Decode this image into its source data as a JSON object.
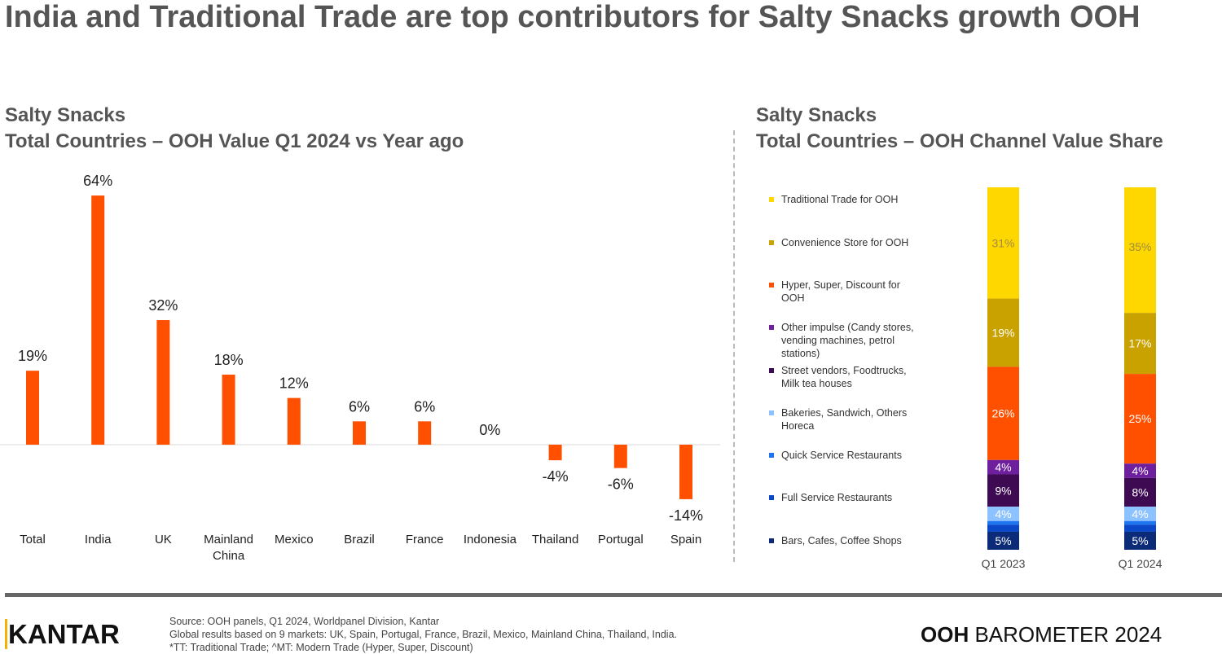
{
  "title": "India and Traditional Trade are top contributors for Salty Snacks growth OOH",
  "left": {
    "line1": "Salty Snacks",
    "line2": "Total Countries – OOH Value Q1 2024 vs Year ago"
  },
  "right": {
    "line1": "Salty Snacks",
    "line2": "Total Countries – OOH Channel Value Share"
  },
  "chart_data": [
    {
      "type": "bar",
      "title": "Total Countries – OOH Value Q1 2024 vs Year ago",
      "categories": [
        "Total",
        "India",
        "UK",
        "Mainland China",
        "Mexico",
        "Brazil",
        "France",
        "Indonesia",
        "Thailand",
        "Portugal",
        "Spain"
      ],
      "values": [
        19,
        64,
        32,
        18,
        12,
        6,
        6,
        0,
        -4,
        -6,
        -14
      ],
      "labels": [
        "19%",
        "64%",
        "32%",
        "18%",
        "12%",
        "6%",
        "6%",
        "0%",
        "-4%",
        "-6%",
        "-14%"
      ],
      "color": "#FF5000",
      "unit": "%"
    },
    {
      "type": "bar",
      "stacked": true,
      "title": "Total Countries – OOH Channel Value Share",
      "categories": [
        "Q1 2023",
        "Q1 2024"
      ],
      "legend": "left",
      "series": [
        {
          "name": "Traditional Trade for OOH",
          "color": "#FFD700",
          "values": [
            31,
            35
          ],
          "labels": [
            "31%",
            "35%"
          ]
        },
        {
          "name": "Convenience Store for OOH",
          "color": "#C9A200",
          "values": [
            19,
            17
          ],
          "labels": [
            "19%",
            "17%"
          ]
        },
        {
          "name": "Hyper, Super, Discount for OOH",
          "color": "#FF5000",
          "values": [
            26,
            25
          ],
          "labels": [
            "26%",
            "25%"
          ]
        },
        {
          "name": "Other impulse (Candy stores, vending machines, petrol stations)",
          "color": "#6E1F9E",
          "values": [
            4,
            4
          ],
          "labels": [
            "4%",
            "4%"
          ]
        },
        {
          "name": "Street vendors, Foodtrucks, Milk tea houses",
          "color": "#3E0B52",
          "values": [
            9,
            8
          ],
          "labels": [
            "9%",
            "8%"
          ]
        },
        {
          "name": "Bakeries, Sandwich, Others Horeca",
          "color": "#8CC2FF",
          "values": [
            4,
            4
          ],
          "labels": [
            "4%",
            "4%"
          ]
        },
        {
          "name": "Quick Service Restaurants",
          "color": "#1F74F0",
          "values": [
            1,
            1
          ],
          "labels": [
            "",
            ""
          ]
        },
        {
          "name": "Full Service Restaurants",
          "color": "#0A48C8",
          "values": [
            2,
            2
          ],
          "labels": [
            "",
            ""
          ]
        },
        {
          "name": "Bars, Cafes, Coffee Shops",
          "color": "#0B2A78",
          "values": [
            5,
            5
          ],
          "labels": [
            "5%",
            "5%"
          ]
        }
      ]
    }
  ],
  "footer": {
    "lines": [
      "Source: OOH panels, Q1 2024, Worldpanel Division, Kantar",
      "Global results based on 9 markets: UK, Spain, Portugal, France, Brazil, Mexico, Mainland China, Thailand, India.",
      "*TT: Traditional Trade; ^MT: Modern Trade (Hyper, Super, Discount)"
    ]
  },
  "logo": "KANTAR",
  "brand": {
    "bold": "OOH",
    "rest": " BAROMETER 2024"
  }
}
